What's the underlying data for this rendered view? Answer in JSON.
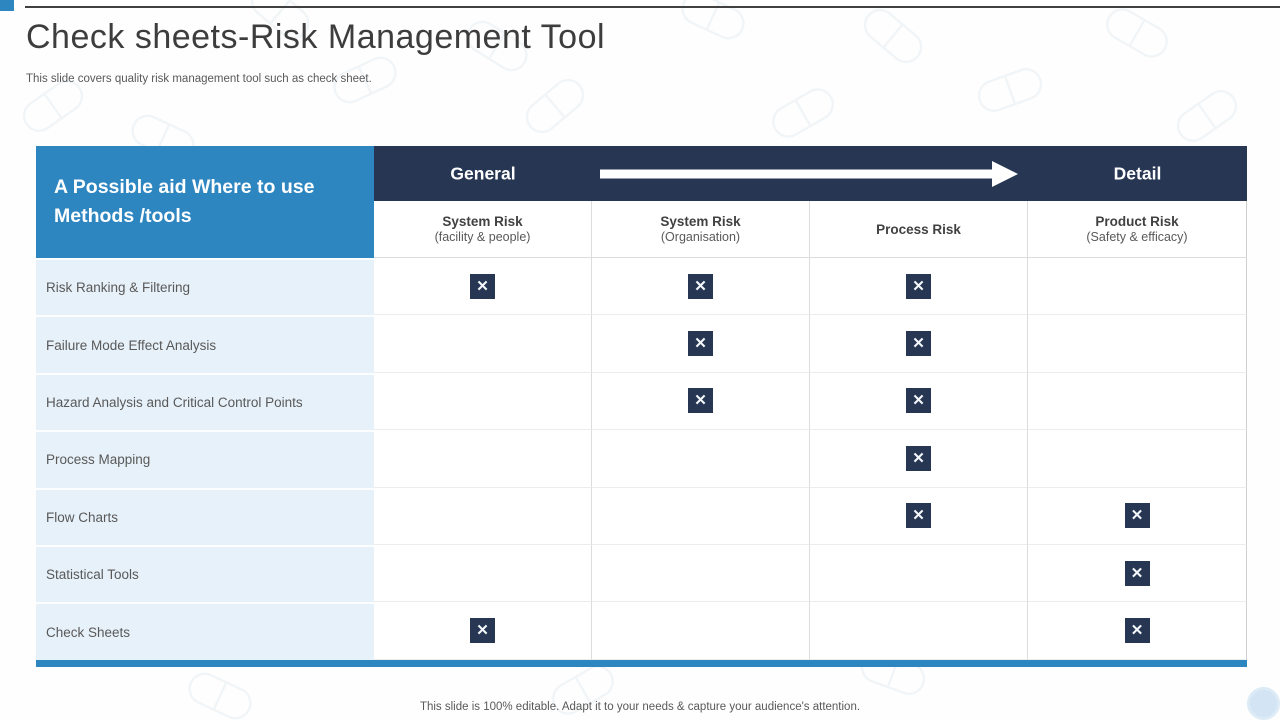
{
  "slide": {
    "title": "Check sheets-Risk Management Tool",
    "subtitle": "This slide covers quality risk management tool such as check sheet.",
    "footer": "This slide is 100% editable. Adapt it to your needs & capture your audience's attention."
  },
  "table": {
    "corner_header": "A Possible aid Where to use  Methods /tools",
    "scale": {
      "left_label": "General",
      "right_label": "Detail"
    },
    "columns": [
      {
        "title": "System Risk",
        "subtitle": "(facility & people)"
      },
      {
        "title": "System Risk",
        "subtitle": "(Organisation)"
      },
      {
        "title": "Process Risk",
        "subtitle": ""
      },
      {
        "title": "Product Risk",
        "subtitle": "(Safety & efficacy)"
      }
    ],
    "mark_glyph": "✕",
    "rows": [
      {
        "label": "Risk Ranking & Filtering",
        "marks": [
          true,
          true,
          true,
          false
        ]
      },
      {
        "label": "Failure Mode Effect Analysis",
        "marks": [
          false,
          true,
          true,
          false
        ]
      },
      {
        "label": "Hazard Analysis and Critical Control Points",
        "marks": [
          false,
          true,
          true,
          false
        ]
      },
      {
        "label": "Process Mapping",
        "marks": [
          false,
          false,
          true,
          false
        ]
      },
      {
        "label": "Flow Charts",
        "marks": [
          false,
          false,
          true,
          true
        ]
      },
      {
        "label": "Statistical Tools",
        "marks": [
          false,
          false,
          false,
          true
        ]
      },
      {
        "label": "Check Sheets",
        "marks": [
          true,
          false,
          false,
          true
        ]
      }
    ]
  },
  "icons": {
    "mark": "x-mark",
    "flow_direction": "arrow-right",
    "background_motif": "pill-capsule"
  },
  "colors": {
    "accent_blue": "#2e86c1",
    "navy": "#273753",
    "row_tint": "#e7f1f9",
    "title_text": "#3d3d3d",
    "body_text": "#595959",
    "circle": "#d3e5f4"
  }
}
